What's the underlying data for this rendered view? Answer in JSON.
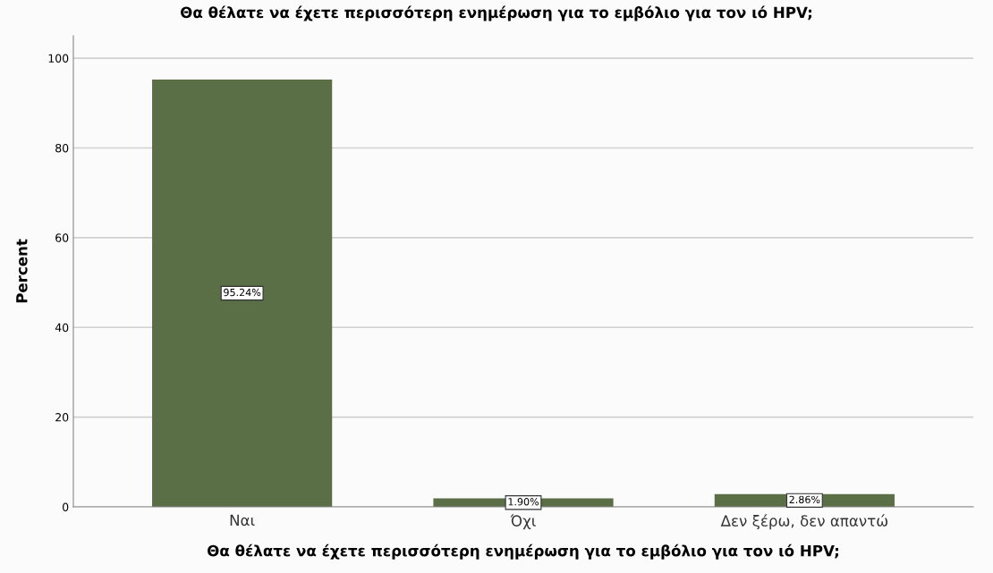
{
  "chart_data": {
    "type": "bar",
    "title": "Θα θέλατε να έχετε περισσότερη ενημέρωση για το εμβόλιο για τον ιό HPV;",
    "xlabel": "Θα θέλατε να έχετε περισσότερη ενημέρωση για το εμβόλιο για τον ιό HPV;",
    "ylabel": "Percent",
    "categories": [
      "Ναι",
      "Όχι",
      "Δεν ξέρω, δεν απαντώ"
    ],
    "values": [
      95.24,
      1.9,
      2.86
    ],
    "value_labels": [
      "95.24%",
      "1.90%",
      "2.86%"
    ],
    "color": "#5b6f47",
    "ylim": [
      0,
      105
    ],
    "yticks": [
      0,
      20,
      40,
      60,
      80,
      100
    ],
    "grid": "y"
  }
}
